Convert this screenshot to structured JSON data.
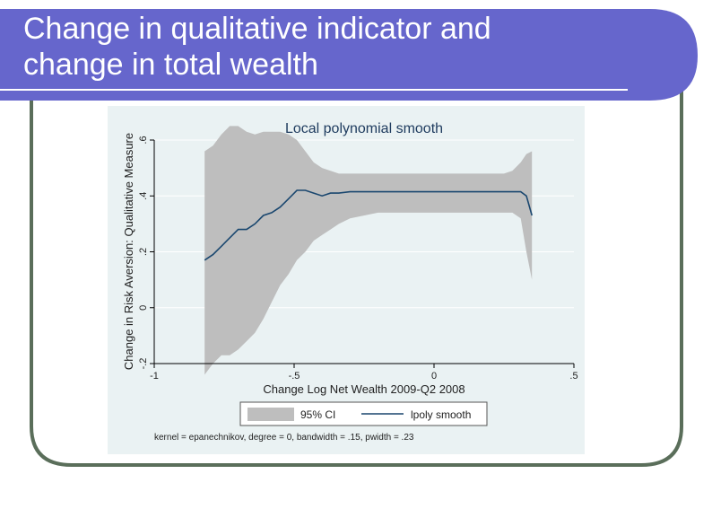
{
  "slide": {
    "title_line1": "Change in qualitative indicator  and",
    "title_line2": "change in total wealth",
    "colors": {
      "title_bar": "#6666cc",
      "frame_border": "#5a6e5a",
      "title_text": "#ffffff"
    }
  },
  "chart_data": {
    "type": "line",
    "title": "Local polynomial smooth",
    "xlabel": "Change Log Net Wealth 2009-Q2 2008",
    "ylabel": "Change in Risk Aversion: Qualitative Measure",
    "xlim": [
      -1,
      0.5
    ],
    "ylim": [
      -0.2,
      0.6
    ],
    "x_ticks": [
      -1,
      -0.5,
      0,
      0.5
    ],
    "x_tick_labels": [
      "-1",
      "-.5",
      "0",
      ".5"
    ],
    "y_ticks": [
      -0.2,
      0,
      0.2,
      0.4,
      0.6
    ],
    "y_tick_labels": [
      "-.2",
      "0",
      ".2",
      ".4",
      ".6"
    ],
    "grid": true,
    "legend_position": "bottom",
    "note": "kernel = epanechnikov, degree = 0, bandwidth = .15, pwidth = .23",
    "colors": {
      "ci": "#bebebe",
      "line": "#1a476f",
      "background": "#eaf2f3",
      "grid": "#ffffff"
    },
    "series": [
      {
        "name": "95% CI",
        "kind": "band",
        "x": [
          -0.82,
          -0.79,
          -0.76,
          -0.73,
          -0.7,
          -0.67,
          -0.64,
          -0.61,
          -0.58,
          -0.55,
          -0.52,
          -0.49,
          -0.46,
          -0.43,
          -0.4,
          -0.37,
          -0.34,
          -0.3,
          -0.2,
          -0.1,
          0,
          0.1,
          0.2,
          0.25,
          0.28,
          0.31,
          0.33,
          0.35
        ],
        "lower": [
          -0.24,
          -0.2,
          -0.17,
          -0.17,
          -0.15,
          -0.12,
          -0.09,
          -0.04,
          0.02,
          0.08,
          0.12,
          0.17,
          0.2,
          0.24,
          0.26,
          0.28,
          0.3,
          0.32,
          0.34,
          0.34,
          0.34,
          0.34,
          0.34,
          0.34,
          0.34,
          0.32,
          0.2,
          0.1
        ],
        "upper": [
          0.56,
          0.58,
          0.62,
          0.65,
          0.65,
          0.63,
          0.62,
          0.63,
          0.63,
          0.63,
          0.62,
          0.6,
          0.56,
          0.52,
          0.5,
          0.49,
          0.48,
          0.48,
          0.48,
          0.48,
          0.48,
          0.48,
          0.48,
          0.48,
          0.49,
          0.52,
          0.55,
          0.56
        ]
      },
      {
        "name": "lpoly smooth",
        "kind": "line",
        "x": [
          -0.82,
          -0.79,
          -0.76,
          -0.73,
          -0.7,
          -0.67,
          -0.64,
          -0.61,
          -0.58,
          -0.55,
          -0.52,
          -0.49,
          -0.46,
          -0.43,
          -0.4,
          -0.37,
          -0.34,
          -0.3,
          -0.2,
          -0.1,
          0,
          0.1,
          0.2,
          0.25,
          0.28,
          0.31,
          0.33,
          0.35
        ],
        "y": [
          0.17,
          0.19,
          0.22,
          0.25,
          0.28,
          0.28,
          0.3,
          0.33,
          0.34,
          0.36,
          0.39,
          0.42,
          0.42,
          0.41,
          0.4,
          0.41,
          0.41,
          0.415,
          0.415,
          0.415,
          0.415,
          0.415,
          0.415,
          0.415,
          0.415,
          0.415,
          0.4,
          0.33
        ]
      }
    ]
  }
}
